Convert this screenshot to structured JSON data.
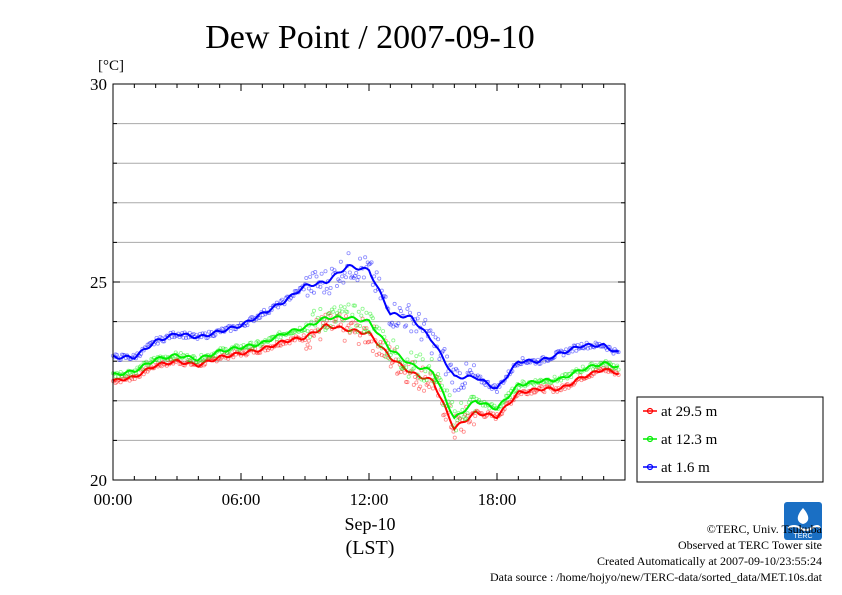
{
  "chart_data": {
    "type": "line",
    "title": "Dew Point / 2007-09-10",
    "y_unit_label": "[°C]",
    "ylim": [
      20,
      30
    ],
    "y_ticks": [
      "20",
      "25",
      "30"
    ],
    "x_ticks": [
      "00:00",
      "06:00",
      "12:00",
      "18:00"
    ],
    "x_date_label": "Sep-10",
    "x_zone_label": "(LST)",
    "x_range_hours": [
      0,
      24
    ],
    "grid": "horizontal",
    "legend_position": "bottom-right",
    "x_hours": [
      0,
      1,
      2,
      3,
      4,
      5,
      6,
      7,
      8,
      9,
      10,
      11,
      12,
      13,
      14,
      15,
      16,
      17,
      18,
      19,
      20,
      21,
      22,
      23,
      23.7
    ],
    "series": [
      {
        "name": "at 29.5 m",
        "color": "#ff0000",
        "values": [
          22.5,
          22.6,
          22.9,
          23.0,
          22.9,
          23.1,
          23.2,
          23.3,
          23.5,
          23.6,
          23.9,
          23.8,
          23.7,
          23.1,
          22.7,
          22.5,
          21.3,
          21.7,
          21.6,
          22.2,
          22.3,
          22.3,
          22.6,
          22.8,
          22.7
        ]
      },
      {
        "name": "at 12.3 m",
        "color": "#00ee00",
        "values": [
          22.65,
          22.75,
          23.05,
          23.15,
          23.05,
          23.25,
          23.35,
          23.45,
          23.7,
          23.85,
          24.1,
          24.1,
          24.0,
          23.3,
          22.9,
          22.75,
          21.55,
          22.0,
          21.8,
          22.4,
          22.5,
          22.55,
          22.8,
          22.95,
          22.85
        ]
      },
      {
        "name": "at 1.6 m",
        "color": "#0000ff",
        "values": [
          23.1,
          23.1,
          23.5,
          23.7,
          23.6,
          23.75,
          23.9,
          24.2,
          24.5,
          24.9,
          25.0,
          25.4,
          25.3,
          24.2,
          24.1,
          23.5,
          22.6,
          22.6,
          22.3,
          23.0,
          23.0,
          23.2,
          23.4,
          23.4,
          23.2
        ]
      }
    ]
  },
  "credits": {
    "line1": "©TERC, Univ. Tsukuba",
    "line2": "Observed at TERC Tower site",
    "line3": "Created Automatically at 2007-09-10/23:55:24",
    "line4": "Data source : /home/hojyo/new/TERC-data/sorted_data/MET.10s.dat"
  },
  "logo": {
    "text": "TERC"
  }
}
